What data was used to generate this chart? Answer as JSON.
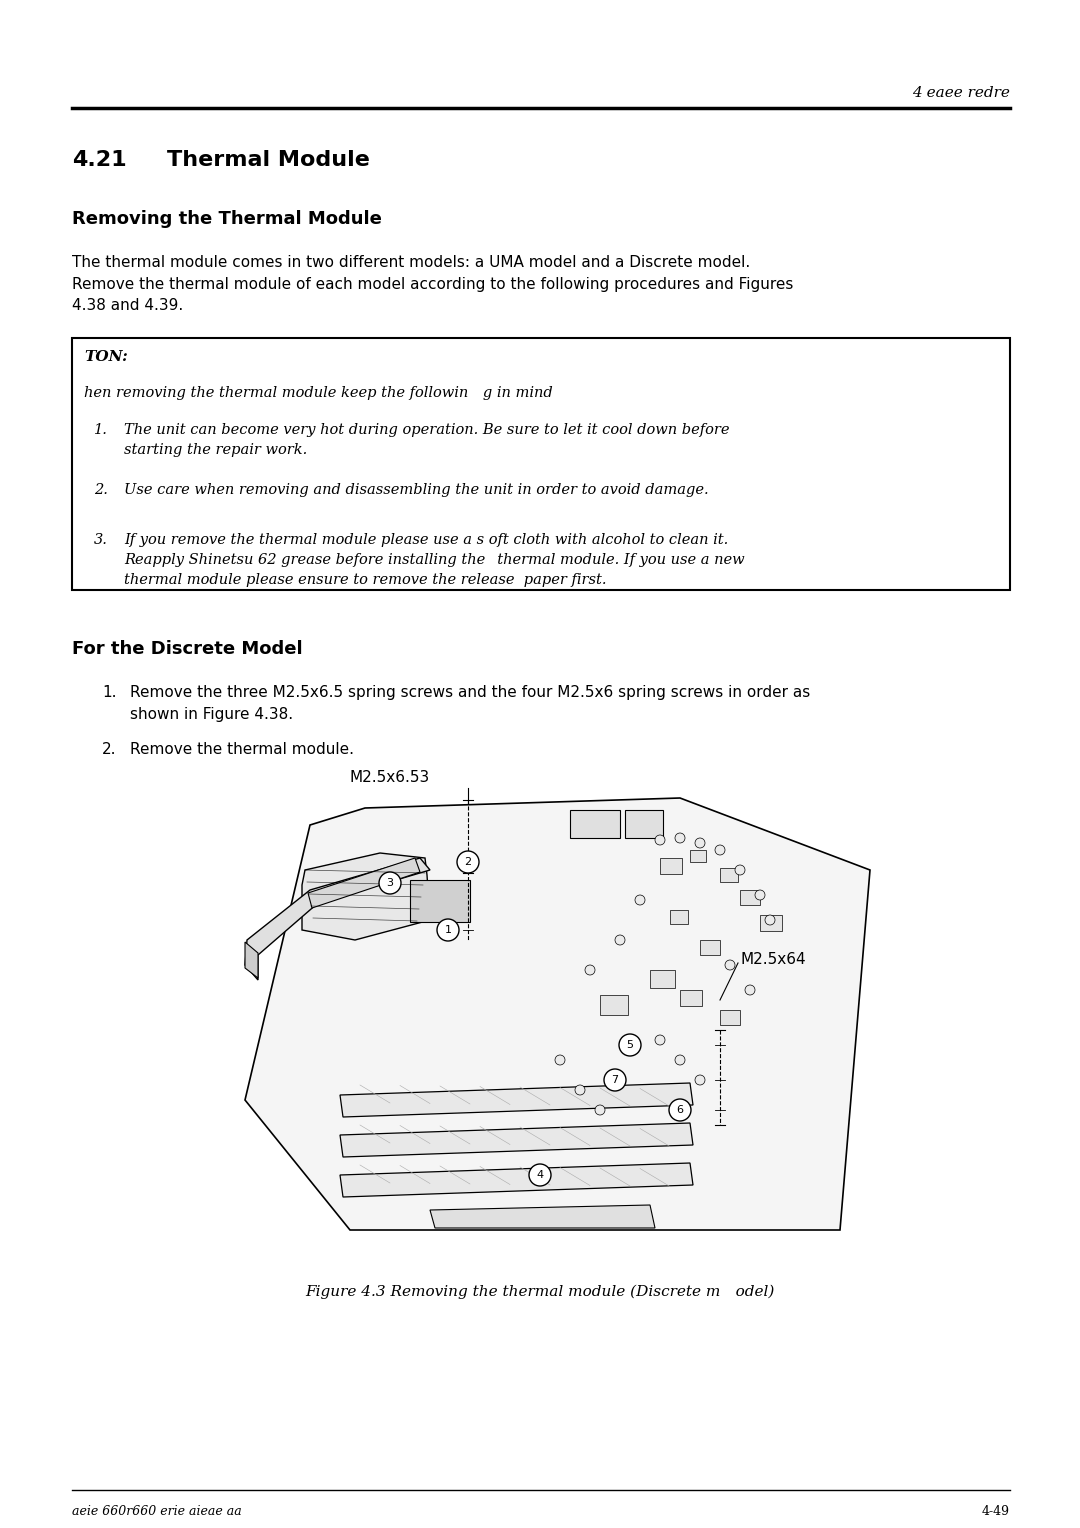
{
  "bg_color": "#ffffff",
  "header_text": "4 eaee redre",
  "section_number": "4.21",
  "section_title": "Thermal Module",
  "subsection_title": "Removing the Thermal Module",
  "intro_text": "The thermal module comes in two different models: a UMA model and a Discrete model.\nRemove the thermal module of each model according to the following procedures and Figures\n4.38 and 4.39.",
  "note_label": "TON:",
  "note_intro": "hen removing the thermal module keep the followin g in mind",
  "note_item1": "The unit can become very hot during operation. Be sure to let it cool down before\nstarting the repair work.",
  "note_item2": "Use care when removing and disassembling the unit in order to avoid damage.",
  "note_item3": "If you remove the thermal module please use a s oft cloth with alcohol to clean it.\nReapply Shinetsu 62 grease before installing the  thermal module. If you use a new\nthermal module please ensure to remove the release  paper first.",
  "discrete_title": "For the Discrete Model",
  "step1": "Remove the three M2.5x6.5 spring screws and the four M2.5x6 spring screws in order as\nshown in Figure 4.38.",
  "step2": "Remove the thermal module.",
  "label_left": "M2.5x6.53",
  "label_right": "M2.5x64",
  "fig_caption": "Figure 4.3 Removing the thermal module (Discrete m odel)",
  "footer_left": "aeie 660r660 erie aieae aa",
  "footer_right": "4-49",
  "text_color": "#000000",
  "line_color": "#000000"
}
